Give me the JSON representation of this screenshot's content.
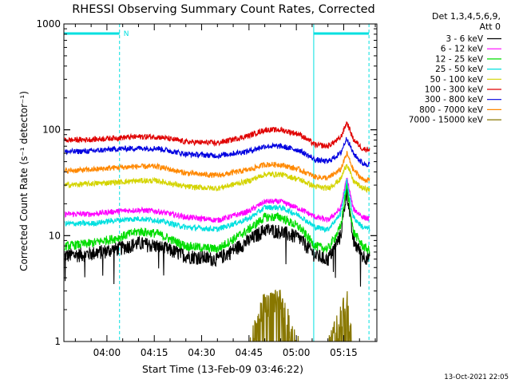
{
  "chart_data": {
    "type": "line",
    "title": "RHESSI Observing Summary Count Rates, Corrected",
    "xlabel": "Start Time (13-Feb-09 03:46:22)",
    "ylabel": "Corrected Count Rate (s⁻¹ detector⁻¹)",
    "y_scale": "log",
    "ylim": [
      1,
      1000
    ],
    "xlim": [
      "03:46:22",
      "05:25:30"
    ],
    "x_ticks": [
      "04:00",
      "04:15",
      "04:30",
      "04:45",
      "05:00",
      "05:15"
    ],
    "y_ticks": [
      "1",
      "10",
      "100",
      "1000"
    ],
    "legend_title": [
      "Det 1,3,4,5,6,9,",
      "Att 0"
    ],
    "legend_position": "right",
    "annotations": [
      "N"
    ],
    "timestamp": "13-Oct-2021 22:05",
    "night_intervals": [
      {
        "start": "03:46:22",
        "end": "04:04:00"
      },
      {
        "start": "05:05:30",
        "end": "05:23:00"
      }
    ],
    "x": [
      "03:47",
      "03:55",
      "04:03",
      "04:10",
      "04:16",
      "04:25",
      "04:35",
      "04:45",
      "04:50",
      "04:55",
      "05:01",
      "05:06",
      "05:10",
      "05:14",
      "05:16",
      "05:18",
      "05:21",
      "05:24"
    ],
    "series": [
      {
        "name": "3 - 6 keV",
        "color": "#000000",
        "values": [
          6.5,
          6.8,
          7.5,
          8.5,
          8.0,
          6.5,
          6.0,
          9.0,
          11.5,
          11.0,
          9.5,
          6.5,
          6.0,
          10.0,
          27.0,
          9.0,
          6.5,
          6.0
        ]
      },
      {
        "name": "6 - 12 keV",
        "color": "#ff00ff",
        "values": [
          16,
          16,
          17,
          17.5,
          17,
          15,
          14,
          17,
          21,
          21,
          18,
          15,
          14,
          18,
          35,
          18,
          15,
          14
        ]
      },
      {
        "name": "12 - 25 keV",
        "color": "#00dd00",
        "values": [
          8.0,
          8.5,
          9.5,
          11,
          10.5,
          8.0,
          7.5,
          11.5,
          15,
          15,
          12,
          8.0,
          7.5,
          12,
          30,
          11,
          8.0,
          7.0
        ]
      },
      {
        "name": "25 - 50 keV",
        "color": "#00e0e0",
        "values": [
          13,
          13,
          14,
          14.5,
          14,
          12,
          11.5,
          14.5,
          18.5,
          18.5,
          15.5,
          12,
          11.5,
          16,
          33,
          15,
          12,
          11.5
        ]
      },
      {
        "name": "50 - 100 keV",
        "color": "#d4d400",
        "values": [
          30,
          31,
          32,
          33,
          33,
          29,
          28,
          33,
          38,
          38,
          34,
          29,
          28,
          34,
          48,
          33,
          28,
          27
        ]
      },
      {
        "name": "100 - 300 keV",
        "color": "#e00000",
        "values": [
          80,
          81,
          84,
          86,
          86,
          77,
          75,
          88,
          100,
          100,
          91,
          72,
          70,
          84,
          118,
          82,
          66,
          65
        ]
      },
      {
        "name": "300 - 800 keV",
        "color": "#0000e0",
        "values": [
          62,
          63,
          66,
          67,
          67,
          59,
          57,
          63,
          70,
          70,
          64,
          52,
          50,
          60,
          84,
          60,
          48,
          47
        ]
      },
      {
        "name": "800 - 7000 keV",
        "color": "#ff8800",
        "values": [
          41,
          42,
          44,
          45,
          45,
          39,
          37,
          42,
          47,
          47,
          42,
          36,
          35,
          42,
          60,
          42,
          34,
          33
        ]
      },
      {
        "name": "7000 - 15000 keV",
        "color": "#887700",
        "values": [
          1,
          1,
          1,
          1,
          1,
          1,
          1,
          1,
          2.8,
          2.8,
          1,
          1,
          1,
          2.0,
          3.0,
          1,
          1,
          1
        ]
      }
    ]
  }
}
